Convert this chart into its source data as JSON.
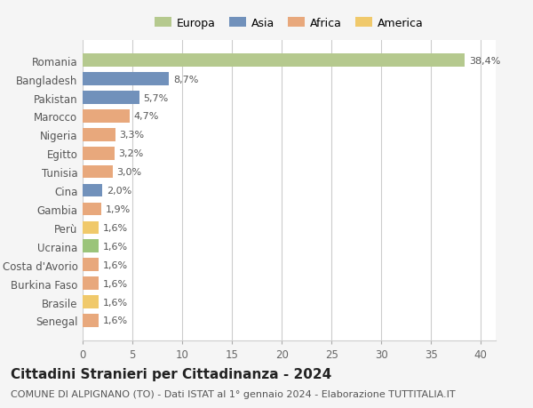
{
  "categories": [
    "Senegal",
    "Brasile",
    "Burkina Faso",
    "Costa d'Avorio",
    "Ucraina",
    "Perù",
    "Gambia",
    "Cina",
    "Tunisia",
    "Egitto",
    "Nigeria",
    "Marocco",
    "Pakistan",
    "Bangladesh",
    "Romania"
  ],
  "values": [
    1.6,
    1.6,
    1.6,
    1.6,
    1.6,
    1.6,
    1.9,
    2.0,
    3.0,
    3.2,
    3.3,
    4.7,
    5.7,
    8.7,
    38.4
  ],
  "labels": [
    "1,6%",
    "1,6%",
    "1,6%",
    "1,6%",
    "1,6%",
    "1,6%",
    "1,9%",
    "2,0%",
    "3,0%",
    "3,2%",
    "3,3%",
    "4,7%",
    "5,7%",
    "8,7%",
    "38,4%"
  ],
  "colors": [
    "#e8a87c",
    "#f0c96b",
    "#e8a87c",
    "#e8a87c",
    "#9bc47a",
    "#f0c96b",
    "#e8a87c",
    "#7191bb",
    "#e8a87c",
    "#e8a87c",
    "#e8a87c",
    "#e8a87c",
    "#7191bb",
    "#7191bb",
    "#b5c98e"
  ],
  "legend_labels": [
    "Europa",
    "Asia",
    "Africa",
    "America"
  ],
  "legend_colors": [
    "#b5c98e",
    "#7191bb",
    "#e8a87c",
    "#f0c96b"
  ],
  "title": "Cittadini Stranieri per Cittadinanza - 2024",
  "subtitle": "COMUNE DI ALPIGNANO (TO) - Dati ISTAT al 1° gennaio 2024 - Elaborazione TUTTITALIA.IT",
  "xlim": [
    0,
    41.5
  ],
  "xticks": [
    0,
    5,
    10,
    15,
    20,
    25,
    30,
    35,
    40
  ],
  "bg_color": "#f5f5f5",
  "bar_area_color": "#ffffff",
  "grid_color": "#cccccc",
  "title_fontsize": 11,
  "subtitle_fontsize": 8,
  "tick_fontsize": 8.5,
  "label_fontsize": 8
}
